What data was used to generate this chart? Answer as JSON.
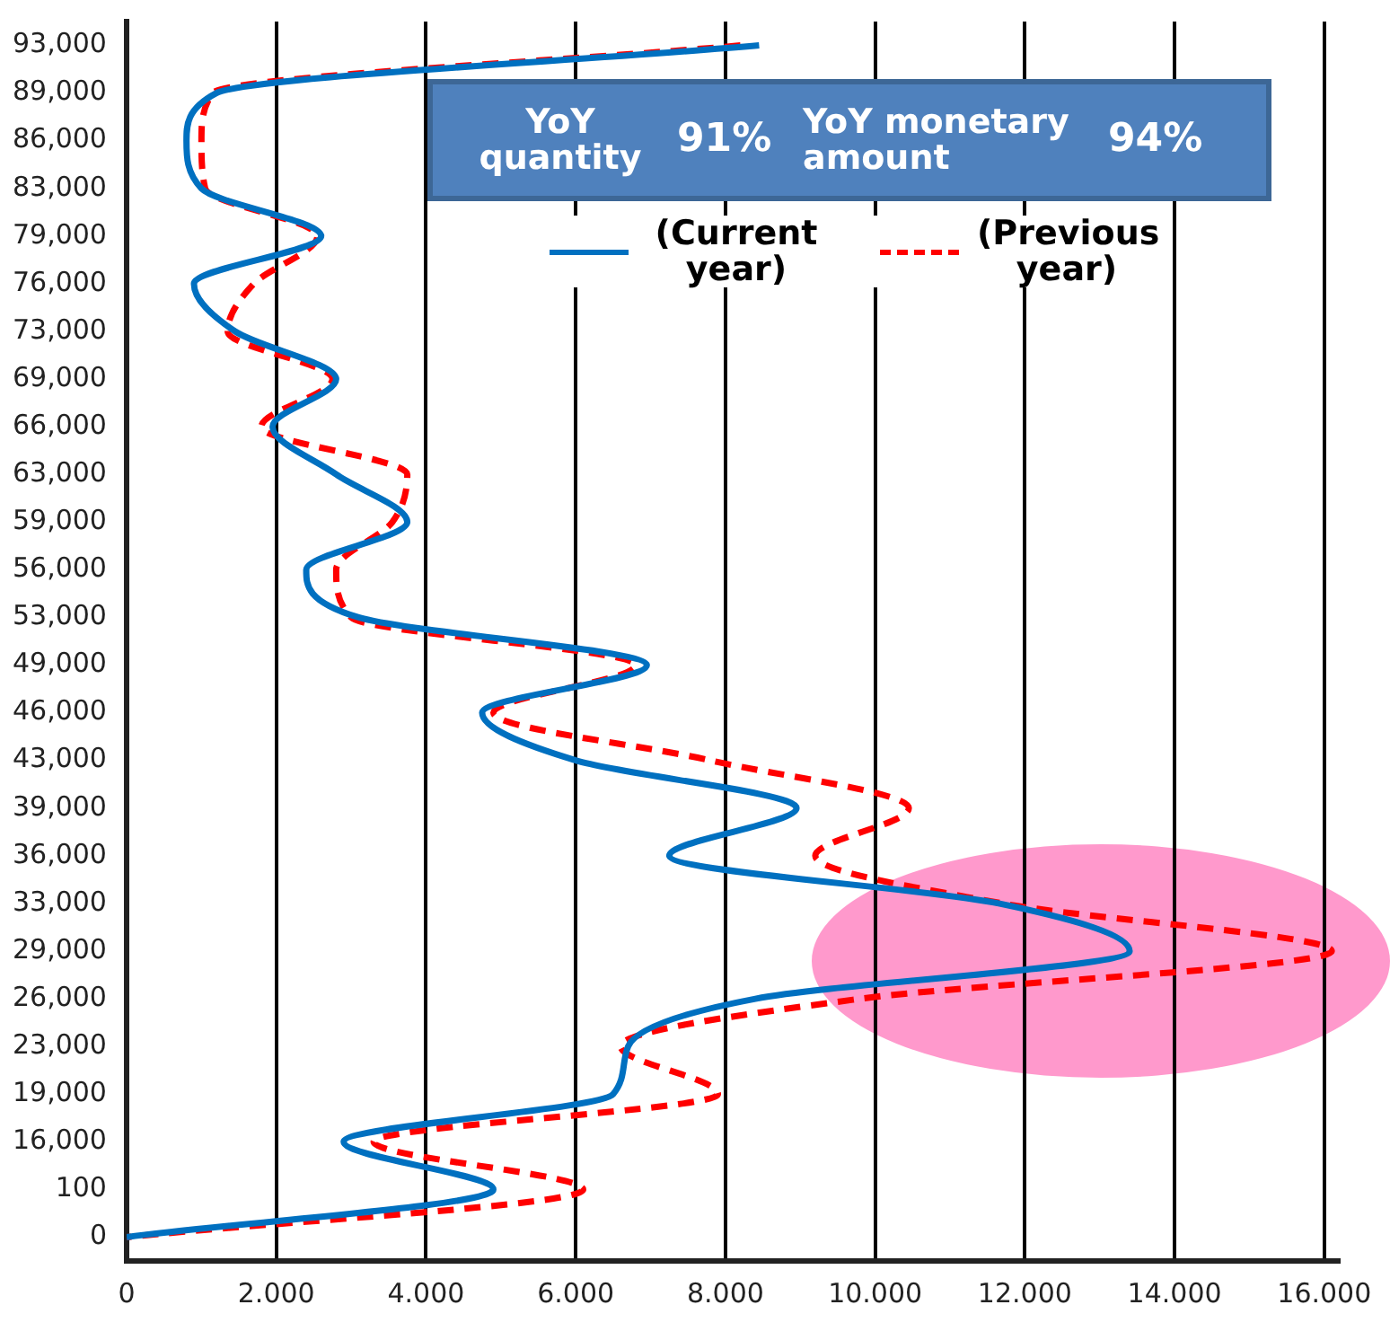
{
  "chart_data": {
    "type": "line",
    "orientation": "horizontal",
    "categories": [
      "93,000",
      "89,000",
      "86,000",
      "83,000",
      "79,000",
      "76,000",
      "73,000",
      "69,000",
      "66,000",
      "63,000",
      "59,000",
      "56,000",
      "53,000",
      "49,000",
      "46,000",
      "43,000",
      "39,000",
      "36,000",
      "33,000",
      "29,000",
      "26,000",
      "23,000",
      "19,000",
      "16,000",
      "100",
      "0"
    ],
    "series": [
      {
        "name": "(Current year)",
        "color": "#0070c0",
        "line_style": "solid",
        "values": [
          8450,
          1200,
          800,
          1000,
          2600,
          900,
          1450,
          2800,
          1950,
          2800,
          3750,
          2400,
          3100,
          6950,
          4750,
          6000,
          8950,
          7250,
          11650,
          13400,
          8400,
          6700,
          6500,
          2900,
          4900,
          0
        ]
      },
      {
        "name": "(Previous year)",
        "color": "#ff0000",
        "line_style": "dashed",
        "values": [
          8200,
          1150,
          1000,
          1050,
          2550,
          1700,
          1350,
          2750,
          1800,
          3750,
          3550,
          2800,
          3000,
          6800,
          4900,
          7800,
          10450,
          9200,
          11700,
          16100,
          9800,
          6600,
          7900,
          3300,
          6100,
          0
        ]
      }
    ],
    "xlim": [
      0,
      16200
    ],
    "xticks": [
      0,
      {
        "value": 2000,
        "label": "2.000"
      },
      {
        "value": 4000,
        "label": "4.000"
      },
      {
        "value": 6000,
        "label": "6.000"
      },
      {
        "value": 8000,
        "label": "8.000"
      },
      {
        "value": 10000,
        "label": "10.000"
      },
      {
        "value": 12000,
        "label": "12.000"
      },
      {
        "value": 14000,
        "label": "14.000"
      },
      {
        "value": 16000,
        "label": "16.000"
      }
    ],
    "grid": "x",
    "legend": "top",
    "annotations": [
      "YoY quantity",
      "91%",
      "YoY monetary amount",
      "94%"
    ]
  }
}
